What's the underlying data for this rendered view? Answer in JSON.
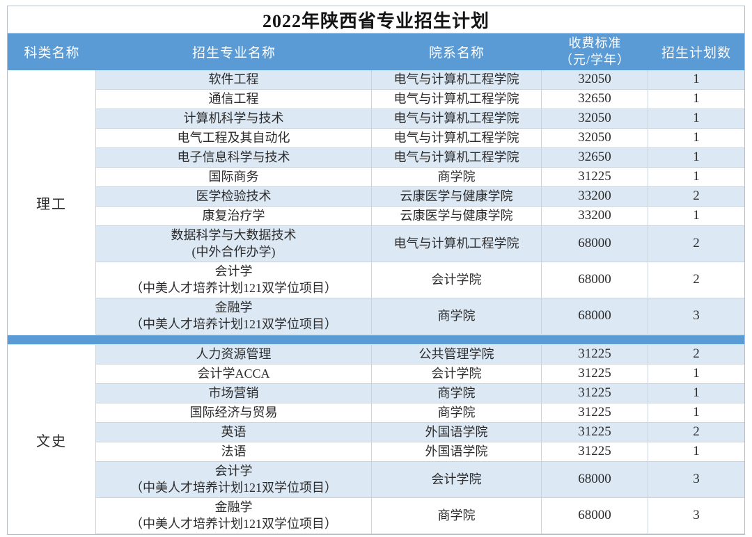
{
  "title": "2022年陕西省专业招生计划",
  "header": {
    "category": "科类名称",
    "major": "招生专业名称",
    "department": "院系名称",
    "fee_line1": "收费标准",
    "fee_line2": "（元/学年）",
    "count": "招生计划数"
  },
  "colors": {
    "header_bg": "#5b9bd5",
    "alt_row_bg": "#dce9f5",
    "separator_bg": "#5b9bd5",
    "grid_line": "#c9d2dd",
    "flag_green": "#2e8540",
    "text": "#2b2b2b"
  },
  "icons": {
    "number_flag": "excel-green-corner-triangle"
  },
  "sections": [
    {
      "category": "理工",
      "rows": [
        {
          "major": "软件工程",
          "department": "电气与计算机工程学院",
          "fee": "32050",
          "count": "1"
        },
        {
          "major": "通信工程",
          "department": "电气与计算机工程学院",
          "fee": "32650",
          "count": "1"
        },
        {
          "major": "计算机科学与技术",
          "department": "电气与计算机工程学院",
          "fee": "32050",
          "count": "1"
        },
        {
          "major": "电气工程及其自动化",
          "department": "电气与计算机工程学院",
          "fee": "32050",
          "count": "1"
        },
        {
          "major": "电子信息科学与技术",
          "department": "电气与计算机工程学院",
          "fee": "32650",
          "count": "1"
        },
        {
          "major": "国际商务",
          "department": "商学院",
          "fee": "31225",
          "count": "1"
        },
        {
          "major": "医学检验技术",
          "department": "云康医学与健康学院",
          "fee": "33200",
          "count": "2"
        },
        {
          "major": "康复治疗学",
          "department": "云康医学与健康学院",
          "fee": "33200",
          "count": "1"
        },
        {
          "major": "数据科学与大数据技术",
          "major_sub": "(中外合作办学)",
          "department": "电气与计算机工程学院",
          "fee": "68000",
          "count": "2"
        },
        {
          "major": "会计学",
          "major_sub": "（中美人才培养计划121双学位项目）",
          "department": "会计学院",
          "fee": "68000",
          "count": "2"
        },
        {
          "major": "金融学",
          "major_sub": "（中美人才培养计划121双学位项目）",
          "department": "商学院",
          "fee": "68000",
          "count": "3"
        }
      ]
    },
    {
      "category": "文史",
      "rows": [
        {
          "major": "人力资源管理",
          "department": "公共管理学院",
          "fee": "31225",
          "count": "2"
        },
        {
          "major": "会计学ACCA",
          "department": "会计学院",
          "fee": "31225",
          "count": "1"
        },
        {
          "major": "市场营销",
          "department": "商学院",
          "fee": "31225",
          "count": "1"
        },
        {
          "major": "国际经济与贸易",
          "department": "商学院",
          "fee": "31225",
          "count": "1"
        },
        {
          "major": "英语",
          "department": "外国语学院",
          "fee": "31225",
          "count": "2"
        },
        {
          "major": "法语",
          "department": "外国语学院",
          "fee": "31225",
          "count": "1"
        },
        {
          "major": "会计学",
          "major_sub": "（中美人才培养计划121双学位项目）",
          "department": "会计学院",
          "fee": "68000",
          "count": "3"
        },
        {
          "major": "金融学",
          "major_sub": "（中美人才培养计划121双学位项目）",
          "department": "商学院",
          "fee": "68000",
          "count": "3"
        }
      ]
    }
  ]
}
